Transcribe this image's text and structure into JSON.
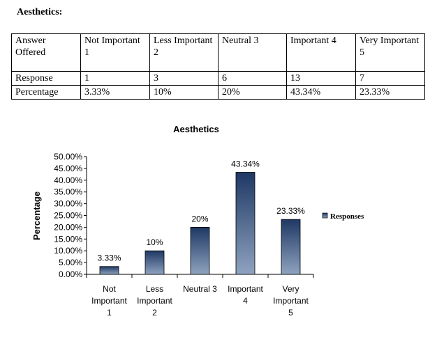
{
  "heading": "Aesthetics:",
  "table": {
    "header": [
      "Answer Offered",
      "Not Important 1",
      "Less Important 2",
      "Neutral 3",
      "Important 4",
      "Very Important 5"
    ],
    "rows": [
      [
        "Response",
        "1",
        "3",
        "6",
        "13",
        "7"
      ],
      [
        "Percentage",
        "3.33%",
        "10%",
        "20%",
        "43.34%",
        "23.33%"
      ]
    ]
  },
  "chart_data": {
    "type": "bar",
    "title": "Aesthetics",
    "ylabel": "Percentage",
    "xlabel": "",
    "categories": [
      [
        "Not",
        "Important",
        "1"
      ],
      [
        "Less",
        "Important",
        "2"
      ],
      [
        "Neutral 3"
      ],
      [
        "Important",
        "4"
      ],
      [
        "Very",
        "Important",
        "5"
      ]
    ],
    "values": [
      3.33,
      10,
      20,
      43.34,
      23.33
    ],
    "data_labels": [
      "3.33%",
      "10%",
      "20%",
      "43.34%",
      "23.33%"
    ],
    "ylim": [
      0,
      50
    ],
    "yticks": [
      "0.00%",
      "5.00%",
      "10.00%",
      "15.00%",
      "20.00%",
      "25.00%",
      "30.00%",
      "35.00%",
      "40.00%",
      "45.00%",
      "50.00%"
    ],
    "legend": {
      "entries": [
        "Responses"
      ],
      "placement": "right"
    },
    "bar_color_top": "#1f3864",
    "bar_color_bottom": "#8ea3bf"
  }
}
